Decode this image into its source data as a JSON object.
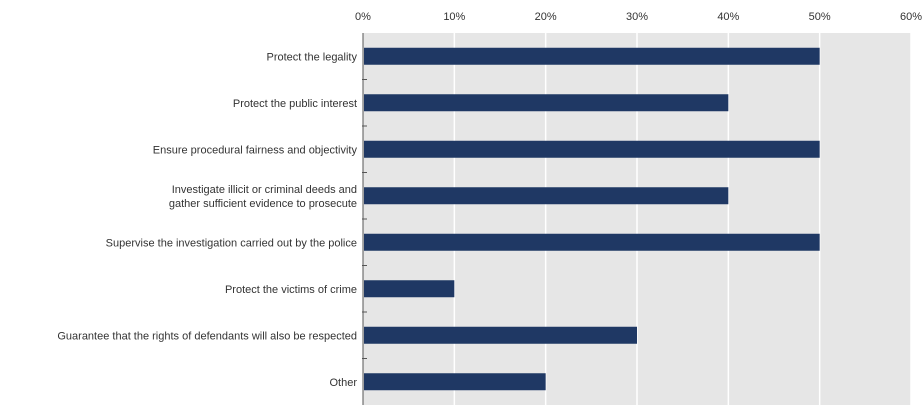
{
  "chart_data": {
    "type": "bar",
    "orientation": "horizontal",
    "categories": [
      [
        "Protect the legality"
      ],
      [
        "Protect the public interest"
      ],
      [
        "Ensure procedural fairness and objectivity"
      ],
      [
        "Investigate illicit or criminal deeds and",
        "gather sufficient evidence to prosecute"
      ],
      [
        "Supervise the investigation carried out by the police"
      ],
      [
        "Protect the victims of crime"
      ],
      [
        "Guarantee that the rights of defendants will also be respected"
      ],
      [
        "Other"
      ]
    ],
    "values": [
      50,
      40,
      50,
      40,
      50,
      10,
      30,
      20
    ],
    "xlim": [
      0,
      60
    ],
    "ticks": [
      "0%",
      "10%",
      "20%",
      "30%",
      "40%",
      "50%",
      "60%"
    ],
    "tick_values": [
      0,
      10,
      20,
      30,
      40,
      50,
      60
    ],
    "title": "",
    "xlabel": "",
    "ylabel": "",
    "grid": true,
    "colors": {
      "bar": "#1f3864",
      "plot_background": "#e6e6e6",
      "gridline": "#ffffff",
      "text": "#333333"
    }
  }
}
